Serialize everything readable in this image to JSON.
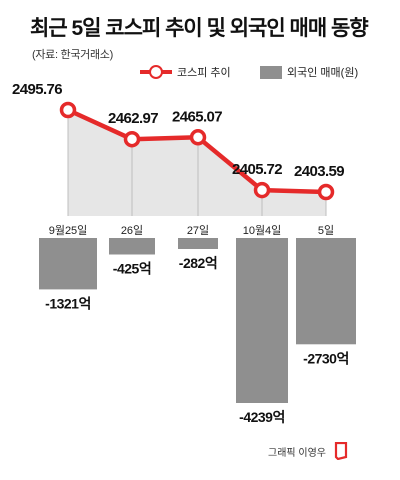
{
  "title": "최근 5일 코스피 추이 및 외국인 매매 동향",
  "source": "(자료: 한국거래소)",
  "legend": {
    "line_label": "코스피 추이",
    "bar_label": "외국인 매매(원)"
  },
  "credit": "그래픽 이영우",
  "colors": {
    "line": "#e52a2a",
    "bar": "#8f8f8f",
    "area": "#e6e6e6",
    "divider": "#bfbfbf"
  },
  "chart_data": {
    "type": "line+bar",
    "categories": [
      "9월25일",
      "26일",
      "27일",
      "10월4일",
      "5일"
    ],
    "series": [
      {
        "name": "코스피 추이",
        "type": "line",
        "values": [
          2495.76,
          2462.97,
          2465.07,
          2405.72,
          2403.59
        ],
        "labels": [
          "2495.76",
          "2462.97",
          "2465.07",
          "2405.72",
          "2403.59"
        ]
      },
      {
        "name": "외국인 매매(원)",
        "type": "bar",
        "values": [
          -1321,
          -425,
          -282,
          -4239,
          -2730
        ],
        "labels": [
          "-1321억",
          "-425억",
          "-282억",
          "-4239억",
          "-2730억"
        ]
      }
    ]
  }
}
